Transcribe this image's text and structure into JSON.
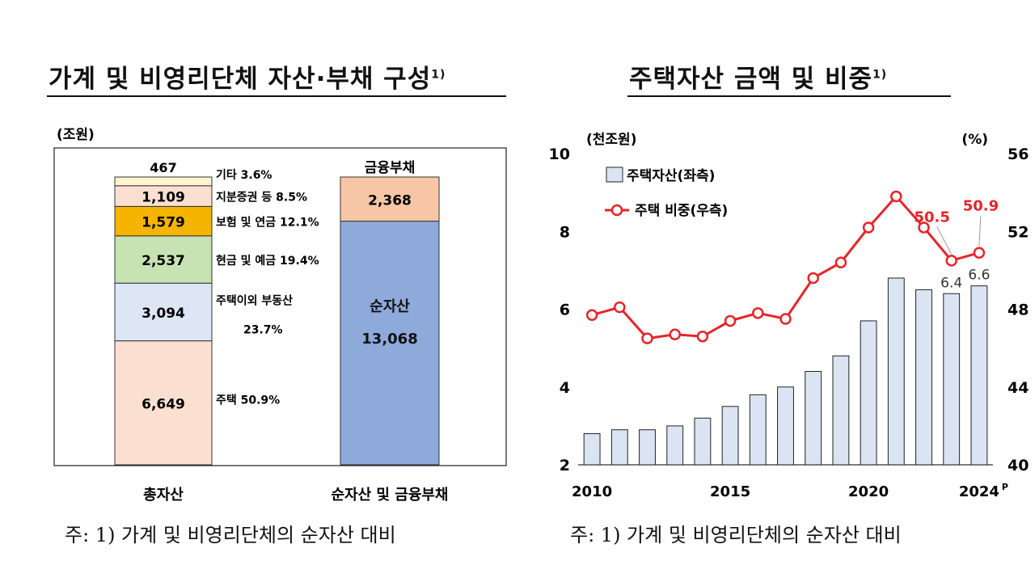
{
  "left": {
    "title": "가계 및 비영리단체 자산·부채 구성",
    "title_note": "1)",
    "unit": "(조원)",
    "footnote": "주: 1) 가계 및 비영리단체의 순자산 대비",
    "colors": {
      "주택": "#fbe0d2",
      "주택이외 부동산": "#dce6f5",
      "현금 및 예금": "#c7e2b3",
      "보험 및 연금": "#f5b400",
      "지분증권 등": "#fbe0d2",
      "기타": "#fdf5cf",
      "순자산": "#8eaadb",
      "금융부채": "#f7c6a6"
    }
  },
  "right": {
    "title": "주택자산 금액 및 비중",
    "title_note": "1)",
    "left_unit": "(천조원)",
    "right_unit": "(%)",
    "footnote": "주: 1) 가계 및 비영리단체의 순자산 대비",
    "bar_color": "#dbe4f3",
    "line_color": "#e8242a"
  },
  "chart_data": [
    {
      "type": "bar",
      "stacked": true,
      "unit": "(조원)",
      "categories": [
        "총자산",
        "순자산 및 금융부채"
      ],
      "series": [
        {
          "name": "주택",
          "category": "총자산",
          "value": 6649,
          "value_label": "6,649",
          "share_label": "50.9%"
        },
        {
          "name": "주택이외 부동산",
          "category": "총자산",
          "value": 3094,
          "value_label": "3,094",
          "share_label": "23.7%"
        },
        {
          "name": "현금 및 예금",
          "category": "총자산",
          "value": 2537,
          "value_label": "2,537",
          "share_label": "19.4%"
        },
        {
          "name": "보험 및 연금",
          "category": "총자산",
          "value": 1579,
          "value_label": "1,579",
          "share_label": "12.1%"
        },
        {
          "name": "지분증권 등",
          "category": "총자산",
          "value": 1109,
          "value_label": "1,109",
          "share_label": "8.5%"
        },
        {
          "name": "기타",
          "category": "총자산",
          "value": 467,
          "value_label": "467",
          "share_label": "3.6%"
        },
        {
          "name": "순자산",
          "category": "순자산 및 금융부채",
          "value": 13068,
          "value_label": "13,068"
        },
        {
          "name": "금융부채",
          "category": "순자산 및 금융부채",
          "value": 2368,
          "value_label": "2,368"
        }
      ],
      "ylim": [
        0,
        15435
      ]
    },
    {
      "type": "bar+line",
      "x": [
        2010,
        2011,
        2012,
        2013,
        2014,
        2015,
        2016,
        2017,
        2018,
        2019,
        2020,
        2021,
        2022,
        2023,
        2024
      ],
      "x_tick_labels": [
        "2010",
        "2015",
        "2020",
        "2024"
      ],
      "x_tick_suffix": "P",
      "left_axis": {
        "unit": "(천조원)",
        "ylim": [
          2,
          10
        ],
        "ticks": [
          2,
          4,
          6,
          8,
          10
        ]
      },
      "right_axis": {
        "unit": "(%)",
        "ylim": [
          40,
          56
        ],
        "ticks": [
          40,
          44,
          48,
          52,
          56
        ]
      },
      "series": [
        {
          "name": "주택자산(좌측)",
          "type": "bar",
          "axis": "left",
          "values": [
            2.8,
            2.9,
            2.9,
            3.0,
            3.2,
            3.5,
            3.8,
            4.0,
            4.4,
            4.8,
            5.7,
            6.8,
            6.5,
            6.4,
            6.6
          ],
          "labels": {
            "13": "6.4",
            "14": "6.6"
          }
        },
        {
          "name": "주택 비중(우측)",
          "type": "line",
          "axis": "right",
          "values": [
            47.7,
            48.1,
            46.5,
            46.7,
            46.6,
            47.4,
            47.8,
            47.5,
            49.6,
            50.4,
            52.2,
            53.8,
            52.2,
            50.5,
            50.9
          ],
          "labels": {
            "13": "50.5",
            "14": "50.9"
          }
        }
      ],
      "legend": "top-left"
    }
  ]
}
